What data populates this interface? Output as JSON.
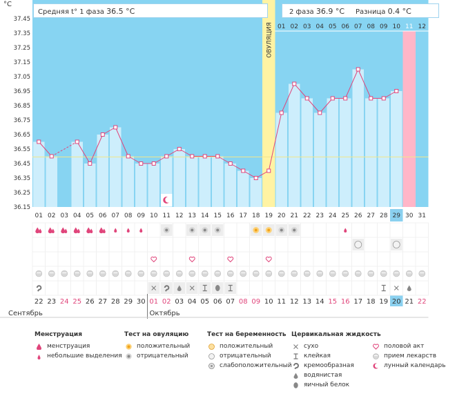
{
  "chart_data": {
    "type": "line",
    "ylabel": "°C",
    "y_ticks": [
      "37.45",
      "37.35",
      "37.25",
      "37.15",
      "37.05",
      "36.95",
      "36.85",
      "36.75",
      "36.65",
      "36.55",
      "36.45",
      "36.35",
      "36.25",
      "36.15"
    ],
    "ylim": [
      36.15,
      37.45
    ],
    "cycle_days": [
      "01",
      "02",
      "03",
      "04",
      "05",
      "06",
      "07",
      "08",
      "09",
      "10",
      "11",
      "12",
      "13",
      "14",
      "15",
      "16",
      "17",
      "18",
      "19",
      "20",
      "21",
      "22",
      "23",
      "24",
      "25",
      "26",
      "27",
      "28",
      "29",
      "30",
      "31"
    ],
    "temperatures": [
      36.6,
      36.5,
      null,
      36.6,
      36.45,
      36.65,
      36.7,
      36.5,
      36.45,
      36.45,
      36.5,
      36.55,
      36.5,
      36.5,
      36.5,
      36.45,
      36.4,
      36.35,
      36.4,
      36.8,
      37.0,
      36.9,
      36.8,
      36.9,
      36.9,
      37.1,
      36.9,
      36.9,
      36.95,
      null,
      null
    ],
    "ovulation_day": 19,
    "ovulation_label": "ОВУЛЯЦИЯ",
    "phase2_days": [
      "01",
      "02",
      "03",
      "04",
      "05",
      "06",
      "07",
      "08",
      "09",
      "10",
      "11",
      "12"
    ],
    "highlight_day_index": 29,
    "pink_day_index": 30,
    "cover_line": 36.5,
    "calendar_days": [
      "22",
      "23",
      "24",
      "25",
      "26",
      "27",
      "28",
      "29",
      "30",
      "01",
      "02",
      "03",
      "04",
      "05",
      "06",
      "07",
      "08",
      "09",
      "10",
      "11",
      "12",
      "13",
      "14",
      "15",
      "16",
      "17",
      "18",
      "19",
      "20",
      "21",
      "22"
    ],
    "red_day_indices": [
      3,
      4,
      10,
      11,
      17,
      18,
      24,
      25,
      31
    ],
    "months": [
      "Сентябрь",
      "Октябрь"
    ],
    "header": {
      "phase1_label": "Средняя t° 1 фаза",
      "phase1_value": "36.5 °C",
      "phase2_label": "2 фаза",
      "phase2_value": "36.9 °C",
      "diff_label": "Разница",
      "diff_value": "0.4 °C"
    },
    "rows": {
      "menstruation": {
        "1": "big",
        "2": "big",
        "3": "big",
        "4": "big",
        "5": "big",
        "6": "big",
        "7": "small",
        "8": "small",
        "9": "small",
        "25": "small"
      },
      "ovulation_test": {
        "11": "neg",
        "13": "neg",
        "14": "neg",
        "15": "neg",
        "18": "pos",
        "19": "pos",
        "20": "neg",
        "21": "neg"
      },
      "pregnancy_test": {
        "26": "neg",
        "29": "neg"
      },
      "intercourse": [
        10,
        13,
        16,
        19
      ],
      "medication": [
        1,
        2,
        3,
        4,
        5,
        6,
        7,
        8,
        9,
        10,
        11,
        12,
        13,
        14,
        15,
        16,
        17,
        18,
        19,
        20,
        21,
        22,
        23,
        24,
        25,
        26,
        27,
        28,
        29,
        30,
        31
      ],
      "fluid": {
        "1": "creamy",
        "10": "dry",
        "11": "creamy",
        "12": "water",
        "13": "dry",
        "14": "sticky",
        "15": "egg",
        "16": "sticky",
        "28": "sticky",
        "29": "dry",
        "30": "water"
      },
      "moon_day": 11
    }
  },
  "legend": {
    "menstruation": {
      "title": "Менструация",
      "items": [
        "менструация",
        "небольшие выделения"
      ]
    },
    "ovulation": {
      "title": "Тест на овуляцию",
      "items": [
        "положительный",
        "отрицательный"
      ]
    },
    "pregnancy": {
      "title": "Тест на беременность",
      "items": [
        "положительный",
        "отрицательный",
        "слабоположительный"
      ]
    },
    "fluid": {
      "title": "Цервикальная жидкость",
      "items": [
        "сухо",
        "клейкая",
        "кремообразная",
        "водянистая",
        "яичный белок"
      ]
    },
    "other": {
      "items": [
        "половой акт",
        "прием лекарств",
        "лунный календарь"
      ]
    }
  },
  "colors": {
    "sky": "#87d4f2",
    "column": "#cdeefc",
    "line": "#e0457b",
    "ovulation": "#fff3a3",
    "pink": "#ffb6c8",
    "highlight": "#8ad0ef"
  }
}
